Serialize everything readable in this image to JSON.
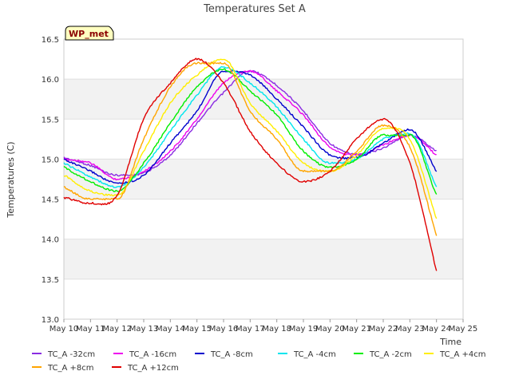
{
  "chart_data": {
    "type": "line",
    "title": "Temperatures Set A",
    "xlabel": "Time",
    "ylabel": "Temperatures (C)",
    "x_ticks": [
      "May 10",
      "May 11",
      "May 12",
      "May 13",
      "May 14",
      "May 15",
      "May 16",
      "May 17",
      "May 18",
      "May 19",
      "May 20",
      "May 21",
      "May 22",
      "May 23",
      "May 24",
      "May 25"
    ],
    "y_ticks": [
      "13.0",
      "13.5",
      "14.0",
      "14.5",
      "15.0",
      "15.5",
      "16.0",
      "16.5"
    ],
    "xlim": [
      "May 10",
      "May 25"
    ],
    "ylim": [
      13.0,
      16.5
    ],
    "grid": "horizontal bands",
    "legend_position": "bottom",
    "annotation": "WP_met",
    "x_dates": [
      "May 10",
      "May 11",
      "May 12",
      "May 13",
      "May 14",
      "May 15",
      "May 16",
      "May 17",
      "May 18",
      "May 19",
      "May 20",
      "May 21",
      "May 22",
      "May 23",
      "May 24"
    ],
    "series": [
      {
        "name": "TC_A -32cm",
        "color": "#8a2be2",
        "values": [
          15.02,
          14.92,
          14.8,
          14.83,
          15.05,
          15.45,
          15.83,
          16.1,
          15.92,
          15.6,
          15.2,
          15.06,
          15.14,
          15.3,
          15.1
        ]
      },
      {
        "name": "TC_A -16cm",
        "color": "#ee00ee",
        "values": [
          15.0,
          14.95,
          14.75,
          14.85,
          15.1,
          15.5,
          15.95,
          16.1,
          15.85,
          15.55,
          15.15,
          15.05,
          15.18,
          15.3,
          15.05
        ]
      },
      {
        "name": "TC_A -8cm",
        "color": "#0000cd",
        "values": [
          15.0,
          14.85,
          14.7,
          14.8,
          15.2,
          15.6,
          16.1,
          16.05,
          15.75,
          15.4,
          15.05,
          15.02,
          15.2,
          15.37,
          14.85
        ]
      },
      {
        "name": "TC_A -4cm",
        "color": "#00e5ee",
        "values": [
          14.95,
          14.78,
          14.65,
          14.9,
          15.35,
          15.8,
          16.15,
          15.95,
          15.65,
          15.25,
          14.95,
          15.0,
          15.25,
          15.32,
          14.65
        ]
      },
      {
        "name": "TC_A -2cm",
        "color": "#00ee00",
        "values": [
          14.9,
          14.72,
          14.6,
          14.95,
          15.45,
          15.9,
          16.12,
          15.85,
          15.55,
          15.1,
          14.9,
          15.0,
          15.3,
          15.3,
          14.55
        ]
      },
      {
        "name": "TC_A +4cm",
        "color": "#ffee00",
        "values": [
          14.8,
          14.6,
          14.55,
          15.1,
          15.7,
          16.05,
          16.25,
          15.7,
          15.35,
          14.95,
          14.85,
          15.05,
          15.38,
          15.25,
          14.25
        ]
      },
      {
        "name": "TC_A +8cm",
        "color": "#ffa500",
        "values": [
          14.65,
          14.5,
          14.5,
          15.25,
          15.9,
          16.2,
          16.2,
          15.6,
          15.25,
          14.85,
          14.85,
          15.1,
          15.42,
          15.15,
          14.05
        ]
      },
      {
        "name": "TC_A +12cm",
        "color": "#e00000",
        "values": [
          14.52,
          14.45,
          14.55,
          15.5,
          15.95,
          16.25,
          15.95,
          15.35,
          14.95,
          14.72,
          14.85,
          15.25,
          15.5,
          14.95,
          13.6
        ]
      }
    ]
  }
}
